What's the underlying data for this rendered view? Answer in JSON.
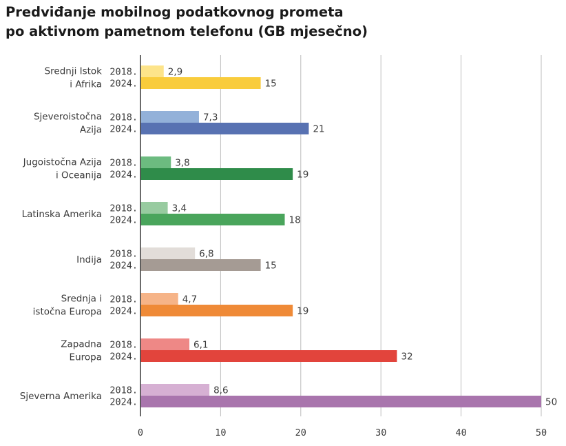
{
  "chart_data": {
    "type": "bar",
    "orientation": "horizontal",
    "title_lines": [
      "Predviđanje mobilnog podatkovnog prometa",
      "po aktivnom pametnom telefonu (GB mjesečno)"
    ],
    "years": [
      "2018.",
      "2024."
    ],
    "xlim": [
      0,
      50
    ],
    "xticks": [
      0,
      10,
      20,
      30,
      40,
      50
    ],
    "grid": "vertical",
    "categories": [
      {
        "label_lines": [
          "Srednji Istok",
          "i Afrika"
        ],
        "values": [
          2.9,
          15
        ],
        "value_labels": [
          "2,9",
          "15"
        ],
        "colors": [
          "#fde48a",
          "#f9cc3c"
        ]
      },
      {
        "label_lines": [
          "Sjeveroistočna",
          "Azija"
        ],
        "values": [
          7.3,
          21
        ],
        "value_labels": [
          "7,3",
          "21"
        ],
        "colors": [
          "#93b1d9",
          "#5872b2"
        ]
      },
      {
        "label_lines": [
          "Jugoistočna Azija",
          "i Oceanija"
        ],
        "values": [
          3.8,
          19
        ],
        "value_labels": [
          "3,8",
          "19"
        ],
        "colors": [
          "#6cbb80",
          "#2f8c4a"
        ]
      },
      {
        "label_lines": [
          "Latinska Amerika"
        ],
        "values": [
          3.4,
          18
        ],
        "value_labels": [
          "3,4",
          "18"
        ],
        "colors": [
          "#98cba0",
          "#4aa55c"
        ]
      },
      {
        "label_lines": [
          "Indija"
        ],
        "values": [
          6.8,
          15
        ],
        "value_labels": [
          "6,8",
          "15"
        ],
        "colors": [
          "#e2ddd9",
          "#a59b94"
        ]
      },
      {
        "label_lines": [
          "Srednja i",
          "istočna Europa"
        ],
        "values": [
          4.7,
          19
        ],
        "value_labels": [
          "4,7",
          "19"
        ],
        "colors": [
          "#f6b488",
          "#ef8a37"
        ]
      },
      {
        "label_lines": [
          "Zapadna",
          "Europa"
        ],
        "values": [
          6.1,
          32
        ],
        "value_labels": [
          "6,1",
          "32"
        ],
        "colors": [
          "#ee8886",
          "#e2443c"
        ]
      },
      {
        "label_lines": [
          "Sjeverna Amerika"
        ],
        "values": [
          8.6,
          50
        ],
        "value_labels": [
          "8,6",
          "50"
        ],
        "colors": [
          "#d6b0d3",
          "#a975ad"
        ]
      }
    ]
  }
}
